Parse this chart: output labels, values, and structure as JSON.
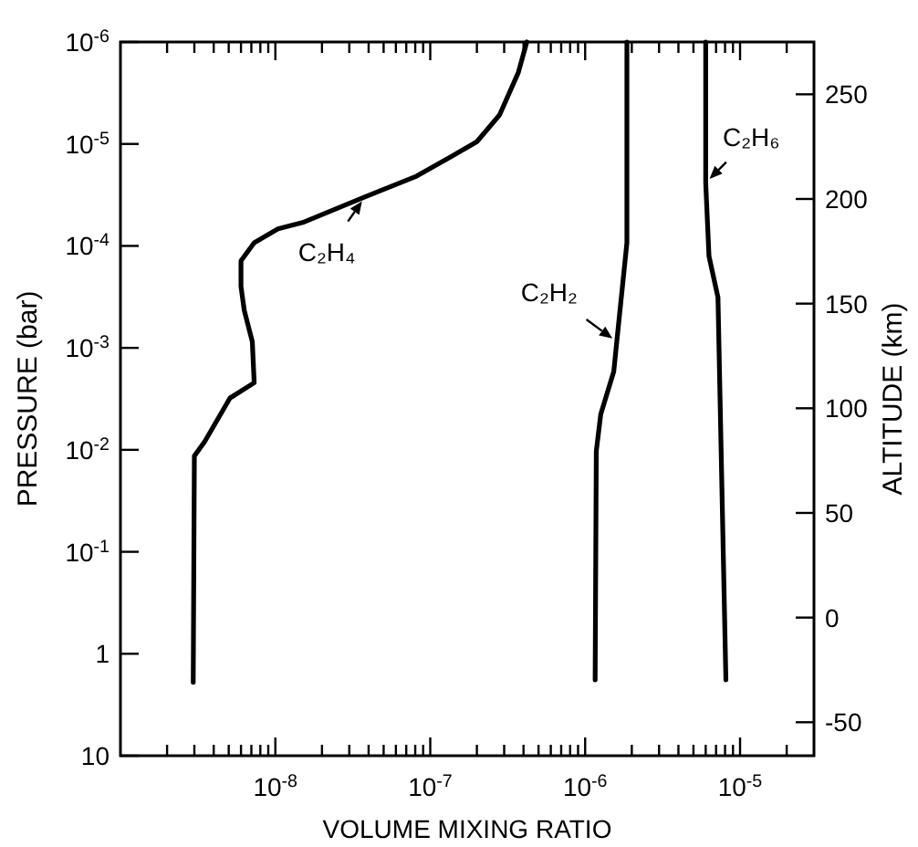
{
  "chart_data": {
    "type": "line",
    "xlabel": "VOLUME MIXING RATIO",
    "ylabel": "PRESSURE (bar)",
    "y2label": "ALTITUDE (km)",
    "log": "xy",
    "marker": "none",
    "line_style": "solid",
    "xlim": [
      1e-09,
      3e-05
    ],
    "xticks": [
      {
        "value": 2e-09,
        "label": null
      },
      {
        "value": 3e-09,
        "label": null
      },
      {
        "value": 4e-09,
        "label": null
      },
      {
        "value": 5e-09,
        "label": null
      },
      {
        "value": 6e-09,
        "label": null
      },
      {
        "value": 7e-09,
        "label": null
      },
      {
        "value": 8e-09,
        "label": null
      },
      {
        "value": 9e-09,
        "label": null
      },
      {
        "value": 1e-08,
        "label": "10$^{-8}$"
      },
      {
        "value": 2e-08,
        "label": null
      },
      {
        "value": 3e-08,
        "label": null
      },
      {
        "value": 4e-08,
        "label": null
      },
      {
        "value": 5e-08,
        "label": null
      },
      {
        "value": 6e-08,
        "label": null
      },
      {
        "value": 7e-08,
        "label": null
      },
      {
        "value": 8e-08,
        "label": null
      },
      {
        "value": 9e-08,
        "label": null
      },
      {
        "value": 1e-07,
        "label": "10$^{-7}$"
      },
      {
        "value": 2e-07,
        "label": null
      },
      {
        "value": 3e-07,
        "label": null
      },
      {
        "value": 4e-07,
        "label": null
      },
      {
        "value": 5e-07,
        "label": null
      },
      {
        "value": 6e-07,
        "label": null
      },
      {
        "value": 7e-07,
        "label": null
      },
      {
        "value": 8e-07,
        "label": null
      },
      {
        "value": 9e-07,
        "label": null
      },
      {
        "value": 1e-06,
        "label": "10$^{-6}$"
      },
      {
        "value": 2e-06,
        "label": null
      },
      {
        "value": 3e-06,
        "label": null
      },
      {
        "value": 4e-06,
        "label": null
      },
      {
        "value": 5e-06,
        "label": null
      },
      {
        "value": 6e-06,
        "label": null
      },
      {
        "value": 7e-06,
        "label": null
      },
      {
        "value": 8e-06,
        "label": null
      },
      {
        "value": 9e-06,
        "label": null
      },
      {
        "value": 1e-05,
        "label": "10$^{-5}$"
      },
      {
        "value": 2e-05,
        "label": null
      }
    ],
    "ylim": [
      10,
      1e-06
    ],
    "yticks": [
      10,
      1,
      {
        "value": 0.1,
        "label": "10$^{-1}$"
      },
      {
        "value": 0.01,
        "label": "10$^{-2}$"
      },
      {
        "value": 0.001,
        "label": "10$^{-3}$"
      },
      {
        "value": 0.0001,
        "label": "10$^{-4}$"
      },
      {
        "value": 1e-05,
        "label": "10$^{-5}$"
      },
      {
        "value": 1e-06,
        "label": "10$^{-6}$"
      }
    ],
    "y2lim": [
      -66,
      275
    ],
    "y2ticks": [
      -50,
      0,
      50,
      100,
      150,
      200,
      250
    ],
    "series": [
      {
        "color": "#000000",
        "x": [
          2.95e-09,
          3e-09,
          3.5e-09,
          5.1e-09,
          7.3e-09,
          7.1e-09,
          6.3e-09,
          6e-09,
          6e-09,
          7.3e-09,
          1.04e-08,
          1.5e-08,
          3.8e-08,
          8e-08,
          1.4e-07,
          2e-07,
          2.8e-07,
          3.7e-07,
          4.2e-07
        ],
        "values": [
          1.9,
          0.0115,
          0.0083,
          0.0031,
          0.0022,
          0.00087,
          0.00043,
          0.00025,
          0.00014,
          9.3e-05,
          6.8e-05,
          5.9e-05,
          3.3e-05,
          2.1e-05,
          1.3e-05,
          9.5e-06,
          5.2e-06,
          2e-06,
          1e-06
        ]
      },
      {
        "color": "#000000",
        "x": [
          1.16e-06,
          1.18e-06,
          1.26e-06,
          1.53e-06,
          1.6e-06,
          1.86e-06,
          1.86e-06
        ],
        "values": [
          1.8,
          0.0103,
          0.0045,
          0.0017,
          0.00087,
          9.3e-05,
          1e-06
        ]
      },
      {
        "color": "#000000",
        "x": [
          8.1e-06,
          7.2e-06,
          6.3e-06,
          6e-06,
          6e-06
        ],
        "values": [
          1.8,
          0.00032,
          0.000126,
          2.4e-05,
          1e-06
        ]
      }
    ],
    "annotations": [
      {
        "text": "C₂H₄",
        "x": 3.8e-08,
        "y": 3.3e-05
      },
      {
        "text": "C₂H₂",
        "x": 1.6e-06,
        "y": 0.00087
      },
      {
        "text": "C₂H₆",
        "x": 6e-06,
        "y": 2.4e-05
      }
    ]
  }
}
